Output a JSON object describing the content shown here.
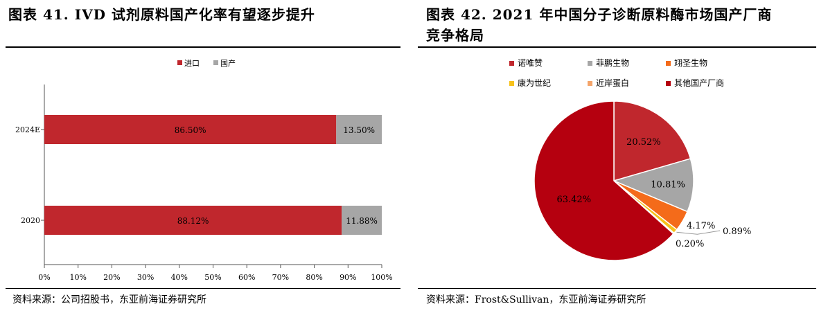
{
  "left": {
    "title": "图表 41. IVD 试剂原料国产化率有望逐步提升",
    "source": "资料来源：公司招股书，东亚前海证券研究所"
  },
  "right": {
    "title": "图表 42. 2021 年中国分子诊断原料酶市场国产厂商\n竞争格局",
    "source": "资料来源：Frost&Sullivan，东亚前海证券研究所"
  },
  "chart_data": [
    {
      "type": "bar",
      "orientation": "horizontal",
      "stacked": true,
      "categories": [
        "2024E",
        "2020"
      ],
      "series": [
        {
          "name": "进口",
          "values": [
            86.5,
            88.12
          ],
          "labels": [
            "86.50%",
            "88.12%"
          ],
          "color": "#c0272d"
        },
        {
          "name": "国产",
          "values": [
            13.5,
            11.88
          ],
          "labels": [
            "13.50%",
            "11.88%"
          ],
          "color": "#a6a6a6"
        }
      ],
      "xlim": [
        0,
        100
      ],
      "xticks": [
        "0%",
        "10%",
        "20%",
        "30%",
        "40%",
        "50%",
        "60%",
        "70%",
        "80%",
        "90%",
        "100%"
      ],
      "legend": "top",
      "grid": false
    },
    {
      "type": "pie",
      "slices": [
        {
          "name": "诺唯赞",
          "value": 20.52,
          "label": "20.52%",
          "color": "#c0272d"
        },
        {
          "name": "菲鹏生物",
          "value": 10.81,
          "label": "10.81%",
          "color": "#a6a6a6"
        },
        {
          "name": "翊圣生物",
          "value": 4.17,
          "label": "4.17%",
          "color": "#f46b1a"
        },
        {
          "name": "康为世纪",
          "value": 0.89,
          "label": "0.89%",
          "color": "#f7c21b"
        },
        {
          "name": "近岸蛋白",
          "value": 0.2,
          "label": "0.20%",
          "color": "#f4a46a"
        },
        {
          "name": "其他国产厂商",
          "value": 63.42,
          "label": "63.42%",
          "color": "#b5000f"
        }
      ],
      "legend": "top"
    }
  ]
}
